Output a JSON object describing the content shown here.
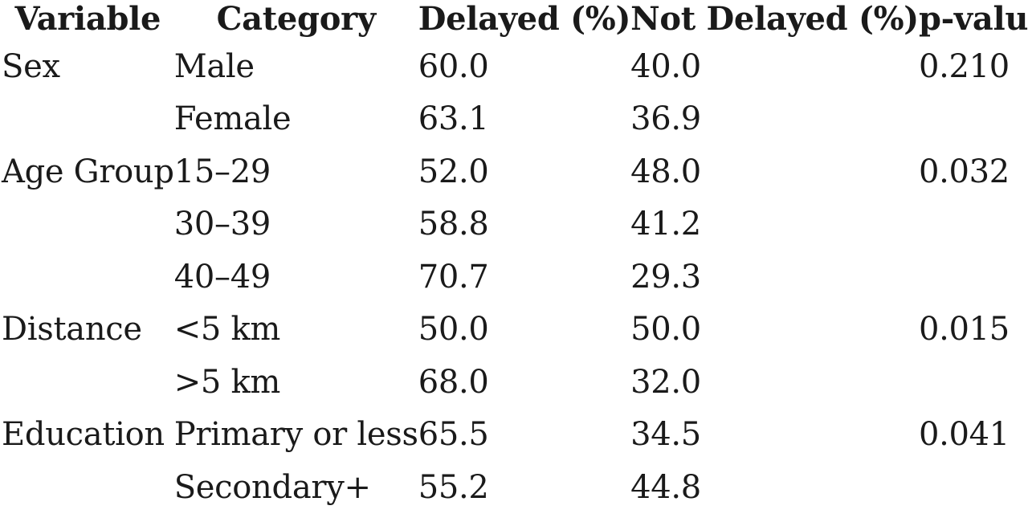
{
  "table": {
    "headers": [
      "Variable",
      "Category",
      "Delayed (%)",
      "Not Delayed (%)",
      "p-value"
    ],
    "rows": [
      [
        "Sex",
        "Male",
        "60.0",
        "40.0",
        "0.210"
      ],
      [
        "",
        "Female",
        "63.1",
        "36.9",
        ""
      ],
      [
        "Age Group",
        "15–29",
        "52.0",
        "48.0",
        "0.032"
      ],
      [
        "",
        "30–39",
        "58.8",
        "41.2",
        ""
      ],
      [
        "",
        "40–49",
        "70.7",
        "29.3",
        ""
      ],
      [
        "Distance",
        "<5 km",
        "50.0",
        "50.0",
        "0.015"
      ],
      [
        "",
        ">5 km",
        "68.0",
        "32.0",
        ""
      ],
      [
        "Education",
        "Primary or less",
        "65.5",
        "34.5",
        "0.041"
      ],
      [
        "",
        "Secondary+",
        "55.2",
        "44.8",
        ""
      ]
    ]
  }
}
